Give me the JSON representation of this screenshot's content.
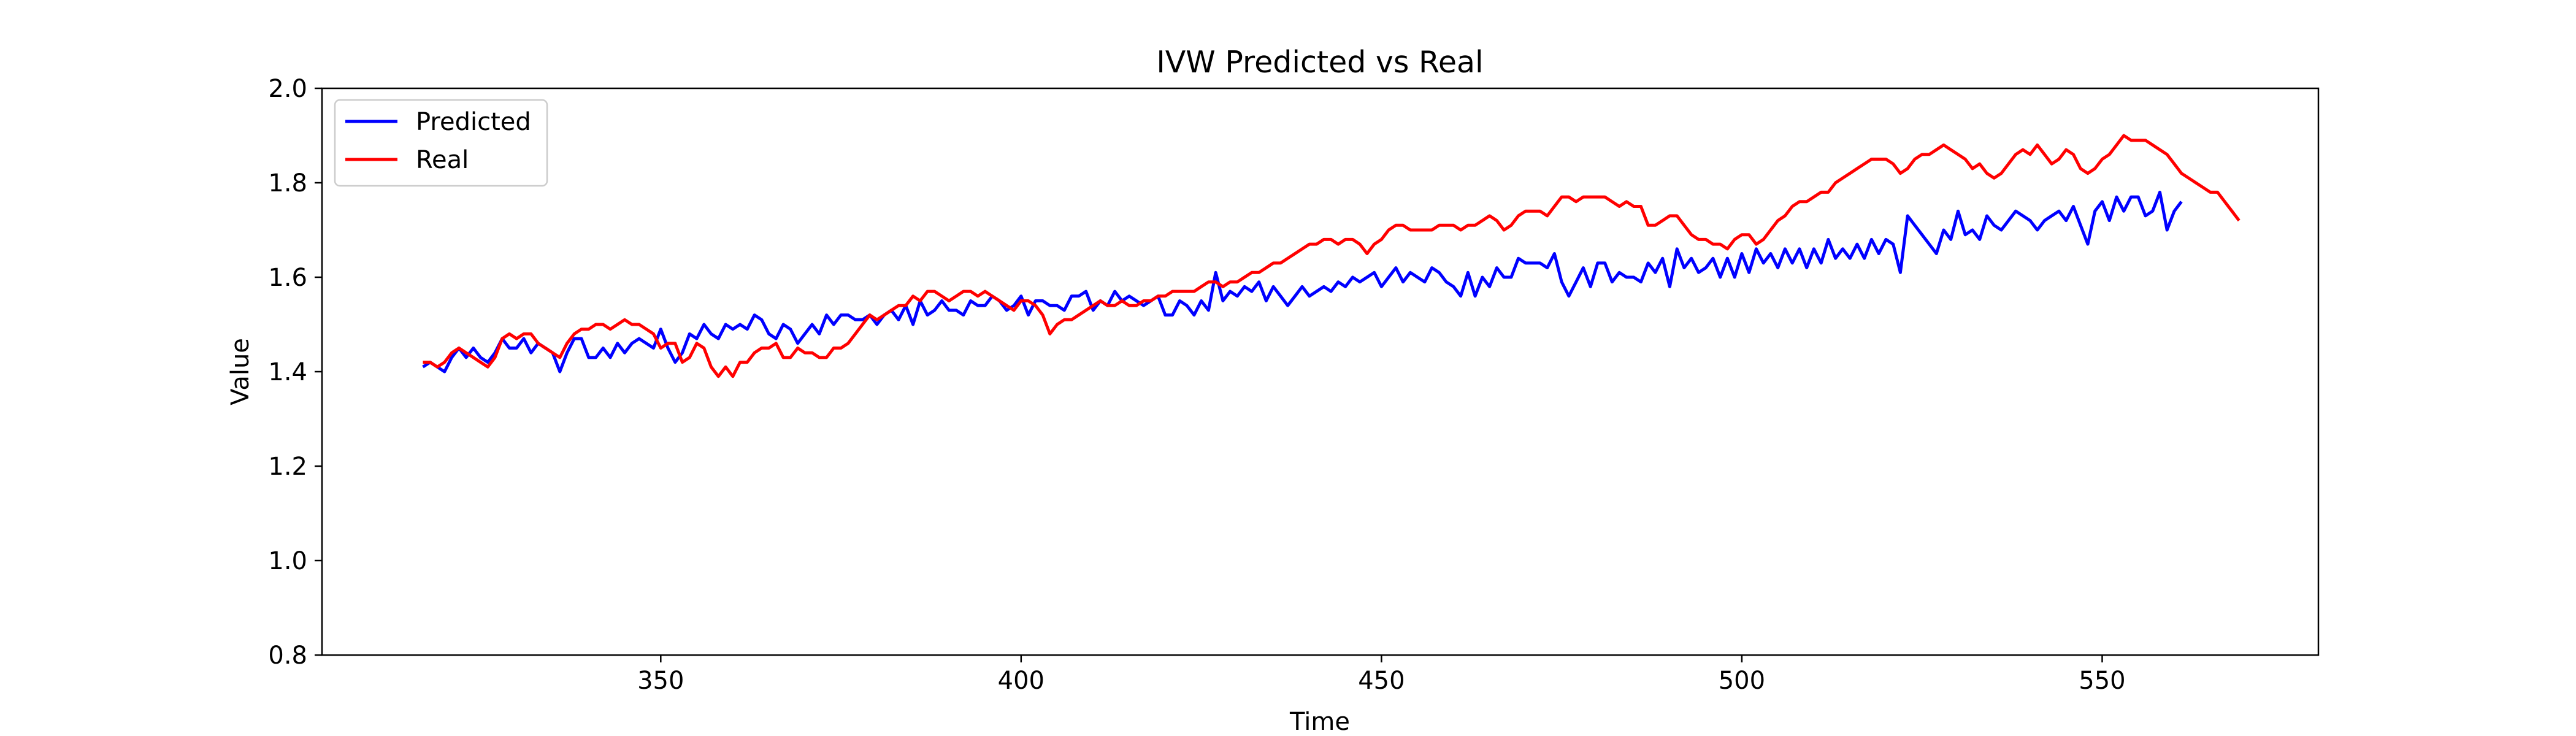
{
  "chart_data": {
    "type": "line",
    "title": "IVW Predicted vs Real",
    "xlabel": "Time",
    "ylabel": "Value",
    "xlim": [
      303,
      580
    ],
    "ylim": [
      0.8,
      2.0
    ],
    "x_ticks": [
      350,
      400,
      450,
      500,
      550
    ],
    "y_ticks": [
      0.8,
      1.0,
      1.2,
      1.4,
      1.6,
      1.8,
      2.0
    ],
    "y_tick_labels": [
      "0.8",
      "1.0",
      "1.2",
      "1.4",
      "1.6",
      "1.8",
      "2.0"
    ],
    "grid": false,
    "legend_position": "upper-left",
    "series": [
      {
        "name": "Predicted",
        "color": "#0000ff",
        "x_start": 317,
        "x_step": 1,
        "values": [
          1.41,
          1.42,
          1.41,
          1.4,
          1.43,
          1.45,
          1.43,
          1.45,
          1.43,
          1.42,
          1.44,
          1.47,
          1.45,
          1.45,
          1.47,
          1.44,
          1.46,
          1.45,
          1.44,
          1.4,
          1.44,
          1.47,
          1.47,
          1.43,
          1.43,
          1.45,
          1.43,
          1.46,
          1.44,
          1.46,
          1.47,
          1.46,
          1.45,
          1.49,
          1.45,
          1.42,
          1.44,
          1.48,
          1.47,
          1.5,
          1.48,
          1.47,
          1.5,
          1.49,
          1.5,
          1.49,
          1.52,
          1.51,
          1.48,
          1.47,
          1.5,
          1.49,
          1.46,
          1.48,
          1.5,
          1.48,
          1.52,
          1.5,
          1.52,
          1.52,
          1.51,
          1.51,
          1.52,
          1.5,
          1.52,
          1.53,
          1.51,
          1.54,
          1.5,
          1.55,
          1.52,
          1.53,
          1.55,
          1.53,
          1.53,
          1.52,
          1.55,
          1.54,
          1.54,
          1.56,
          1.55,
          1.53,
          1.54,
          1.56,
          1.52,
          1.55,
          1.55,
          1.54,
          1.54,
          1.53,
          1.56,
          1.56,
          1.57,
          1.53,
          1.55,
          1.54,
          1.57,
          1.55,
          1.56,
          1.55,
          1.54,
          1.55,
          1.56,
          1.52,
          1.52,
          1.55,
          1.54,
          1.52,
          1.55,
          1.53,
          1.61,
          1.55,
          1.57,
          1.56,
          1.58,
          1.57,
          1.59,
          1.55,
          1.58,
          1.56,
          1.54,
          1.56,
          1.58,
          1.56,
          1.57,
          1.58,
          1.57,
          1.59,
          1.58,
          1.6,
          1.59,
          1.6,
          1.61,
          1.58,
          1.6,
          1.62,
          1.59,
          1.61,
          1.6,
          1.59,
          1.62,
          1.61,
          1.59,
          1.58,
          1.56,
          1.61,
          1.56,
          1.6,
          1.58,
          1.62,
          1.6,
          1.6,
          1.64,
          1.63,
          1.63,
          1.63,
          1.62,
          1.65,
          1.59,
          1.56,
          1.59,
          1.62,
          1.58,
          1.63,
          1.63,
          1.59,
          1.61,
          1.6,
          1.6,
          1.59,
          1.63,
          1.61,
          1.64,
          1.58,
          1.66,
          1.62,
          1.64,
          1.61,
          1.62,
          1.64,
          1.6,
          1.64,
          1.6,
          1.65,
          1.61,
          1.66,
          1.63,
          1.65,
          1.62,
          1.66,
          1.63,
          1.66,
          1.62,
          1.66,
          1.63,
          1.68,
          1.64,
          1.66,
          1.64,
          1.67,
          1.64,
          1.68,
          1.65,
          1.68,
          1.67,
          1.61,
          1.73,
          1.71,
          1.69,
          1.67,
          1.65,
          1.7,
          1.68,
          1.74,
          1.69,
          1.7,
          1.68,
          1.73,
          1.71,
          1.7,
          1.72,
          1.74,
          1.73,
          1.72,
          1.7,
          1.72,
          1.73,
          1.74,
          1.72,
          1.75,
          1.71,
          1.67,
          1.74,
          1.76,
          1.72,
          1.77,
          1.74,
          1.77,
          1.77,
          1.73,
          1.74,
          1.78,
          1.7,
          1.74,
          1.76
        ]
      },
      {
        "name": "Real",
        "color": "#ff0000",
        "x_start": 317,
        "x_step": 1,
        "values": [
          1.42,
          1.42,
          1.41,
          1.42,
          1.44,
          1.45,
          1.44,
          1.43,
          1.42,
          1.41,
          1.43,
          1.47,
          1.48,
          1.47,
          1.48,
          1.48,
          1.46,
          1.45,
          1.44,
          1.43,
          1.46,
          1.48,
          1.49,
          1.49,
          1.5,
          1.5,
          1.49,
          1.5,
          1.51,
          1.5,
          1.5,
          1.49,
          1.48,
          1.45,
          1.46,
          1.46,
          1.42,
          1.43,
          1.46,
          1.45,
          1.41,
          1.39,
          1.41,
          1.39,
          1.42,
          1.42,
          1.44,
          1.45,
          1.45,
          1.46,
          1.43,
          1.43,
          1.45,
          1.44,
          1.44,
          1.43,
          1.43,
          1.45,
          1.45,
          1.46,
          1.48,
          1.5,
          1.52,
          1.51,
          1.52,
          1.53,
          1.54,
          1.54,
          1.56,
          1.55,
          1.57,
          1.57,
          1.56,
          1.55,
          1.56,
          1.57,
          1.57,
          1.56,
          1.57,
          1.56,
          1.55,
          1.54,
          1.53,
          1.55,
          1.55,
          1.54,
          1.52,
          1.48,
          1.5,
          1.51,
          1.51,
          1.52,
          1.53,
          1.54,
          1.55,
          1.54,
          1.54,
          1.55,
          1.54,
          1.54,
          1.55,
          1.55,
          1.56,
          1.56,
          1.57,
          1.57,
          1.57,
          1.57,
          1.58,
          1.59,
          1.59,
          1.58,
          1.59,
          1.59,
          1.6,
          1.61,
          1.61,
          1.62,
          1.63,
          1.63,
          1.64,
          1.65,
          1.66,
          1.67,
          1.67,
          1.68,
          1.68,
          1.67,
          1.68,
          1.68,
          1.67,
          1.65,
          1.67,
          1.68,
          1.7,
          1.71,
          1.71,
          1.7,
          1.7,
          1.7,
          1.7,
          1.71,
          1.71,
          1.71,
          1.7,
          1.71,
          1.71,
          1.72,
          1.73,
          1.72,
          1.7,
          1.71,
          1.73,
          1.74,
          1.74,
          1.74,
          1.73,
          1.75,
          1.77,
          1.77,
          1.76,
          1.77,
          1.77,
          1.77,
          1.77,
          1.76,
          1.75,
          1.76,
          1.75,
          1.75,
          1.71,
          1.71,
          1.72,
          1.73,
          1.73,
          1.71,
          1.69,
          1.68,
          1.68,
          1.67,
          1.67,
          1.66,
          1.68,
          1.69,
          1.69,
          1.67,
          1.68,
          1.7,
          1.72,
          1.73,
          1.75,
          1.76,
          1.76,
          1.77,
          1.78,
          1.78,
          1.8,
          1.81,
          1.82,
          1.83,
          1.84,
          1.85,
          1.85,
          1.85,
          1.84,
          1.82,
          1.83,
          1.85,
          1.86,
          1.86,
          1.87,
          1.88,
          1.87,
          1.86,
          1.85,
          1.83,
          1.84,
          1.82,
          1.81,
          1.82,
          1.84,
          1.86,
          1.87,
          1.86,
          1.88,
          1.86,
          1.84,
          1.85,
          1.87,
          1.86,
          1.83,
          1.82,
          1.83,
          1.85,
          1.86,
          1.88,
          1.9,
          1.89,
          1.89,
          1.89,
          1.88,
          1.87,
          1.86,
          1.84,
          1.82,
          1.81,
          1.8,
          1.79,
          1.78,
          1.78,
          1.76,
          1.74,
          1.72
        ]
      }
    ]
  }
}
